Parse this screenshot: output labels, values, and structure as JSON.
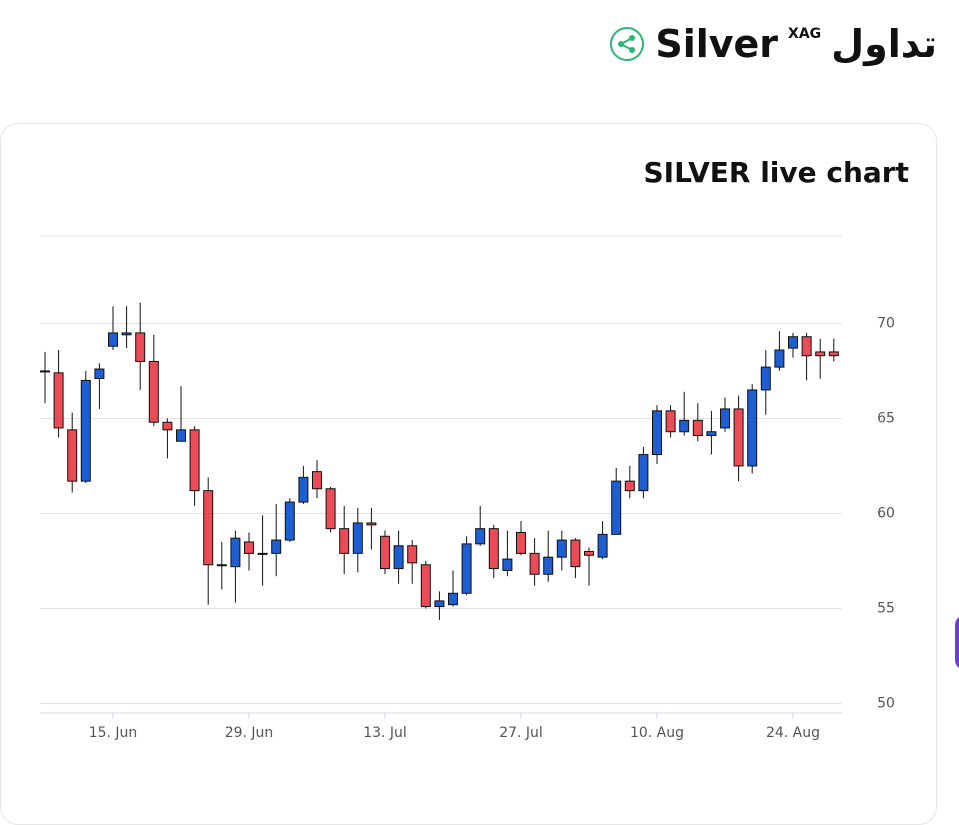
{
  "header": {
    "title": "Silver",
    "symbol": "XAG",
    "action": "تداول"
  },
  "chart_data": {
    "type": "candlestick",
    "title": "SILVER live chart",
    "categories": [
      null,
      null,
      null,
      null,
      null,
      "15. Jun",
      null,
      null,
      null,
      null,
      null,
      null,
      null,
      null,
      null,
      "29. Jun",
      null,
      null,
      null,
      null,
      null,
      null,
      null,
      null,
      null,
      "13. Jul",
      null,
      null,
      null,
      null,
      null,
      null,
      null,
      null,
      null,
      "27. Jul",
      null,
      null,
      null,
      null,
      null,
      null,
      null,
      null,
      null,
      "10. Aug",
      null,
      null,
      null,
      null,
      null,
      null,
      null,
      null,
      null,
      "24. Aug",
      null,
      null,
      null
    ],
    "open": [
      67.5,
      67.4,
      64.4,
      61.7,
      67.1,
      68.8,
      69.4,
      69.5,
      68.0,
      64.8,
      63.8,
      64.4,
      61.2,
      57.3,
      57.2,
      58.5,
      57.9,
      57.9,
      58.6,
      60.6,
      62.2,
      61.3,
      59.2,
      57.9,
      59.5,
      58.8,
      57.1,
      58.3,
      57.3,
      55.1,
      55.2,
      55.8,
      58.4,
      59.2,
      57.0,
      59.0,
      57.9,
      56.8,
      57.7,
      58.6,
      58.0,
      57.7,
      58.9,
      61.7,
      61.2,
      63.1,
      65.4,
      64.3,
      64.9,
      64.1,
      64.5,
      65.5,
      62.5,
      66.5,
      67.7,
      68.7,
      69.3,
      68.5,
      68.5
    ],
    "high": [
      68.5,
      68.6,
      65.3,
      67.5,
      67.9,
      70.9,
      70.9,
      71.1,
      69.4,
      65.0,
      66.7,
      64.6,
      61.9,
      58.5,
      59.1,
      59.0,
      59.9,
      60.5,
      60.8,
      62.5,
      62.8,
      61.4,
      60.4,
      60.3,
      60.3,
      59.1,
      59.1,
      58.6,
      57.5,
      55.9,
      57.0,
      58.8,
      60.4,
      59.4,
      59.1,
      59.6,
      58.7,
      59.1,
      59.1,
      58.7,
      58.2,
      59.6,
      62.4,
      62.5,
      63.5,
      65.7,
      65.7,
      66.4,
      65.8,
      65.4,
      66.1,
      66.2,
      66.8,
      68.6,
      69.6,
      69.5,
      69.5,
      69.2,
      69.2
    ],
    "low": [
      65.8,
      64.0,
      61.1,
      61.6,
      65.5,
      68.6,
      68.7,
      66.5,
      64.6,
      62.9,
      63.8,
      60.4,
      55.2,
      56.0,
      55.3,
      57.0,
      56.2,
      56.7,
      58.5,
      60.5,
      60.8,
      59.0,
      56.8,
      56.9,
      58.1,
      56.8,
      56.3,
      56.3,
      55.0,
      54.4,
      55.1,
      55.7,
      58.3,
      56.6,
      56.7,
      57.8,
      56.2,
      56.4,
      57.0,
      56.6,
      56.2,
      57.6,
      58.9,
      60.8,
      60.8,
      62.6,
      64.0,
      64.1,
      63.8,
      63.1,
      64.3,
      61.7,
      62.1,
      65.2,
      67.5,
      68.2,
      67.0,
      67.1,
      68.0
    ],
    "close": [
      67.5,
      64.5,
      61.7,
      67.0,
      67.6,
      69.5,
      69.5,
      68.0,
      64.8,
      64.4,
      64.4,
      61.2,
      57.3,
      57.3,
      58.7,
      57.9,
      57.9,
      58.6,
      60.6,
      61.9,
      61.3,
      59.2,
      57.9,
      59.5,
      59.4,
      57.1,
      58.3,
      57.4,
      55.1,
      55.4,
      55.8,
      58.4,
      59.2,
      57.1,
      57.6,
      57.9,
      56.8,
      57.7,
      58.6,
      57.2,
      57.8,
      58.9,
      61.7,
      61.2,
      63.1,
      65.4,
      64.3,
      64.9,
      64.1,
      64.3,
      65.5,
      62.5,
      66.5,
      67.7,
      68.6,
      69.3,
      68.3,
      68.3,
      68.3
    ],
    "up_color": "#1d5fd3",
    "down_color": "#ec4a55",
    "ylim": [
      49.5,
      74.6
    ],
    "yticks": [
      50,
      55,
      60,
      65,
      70
    ],
    "grid": true
  }
}
